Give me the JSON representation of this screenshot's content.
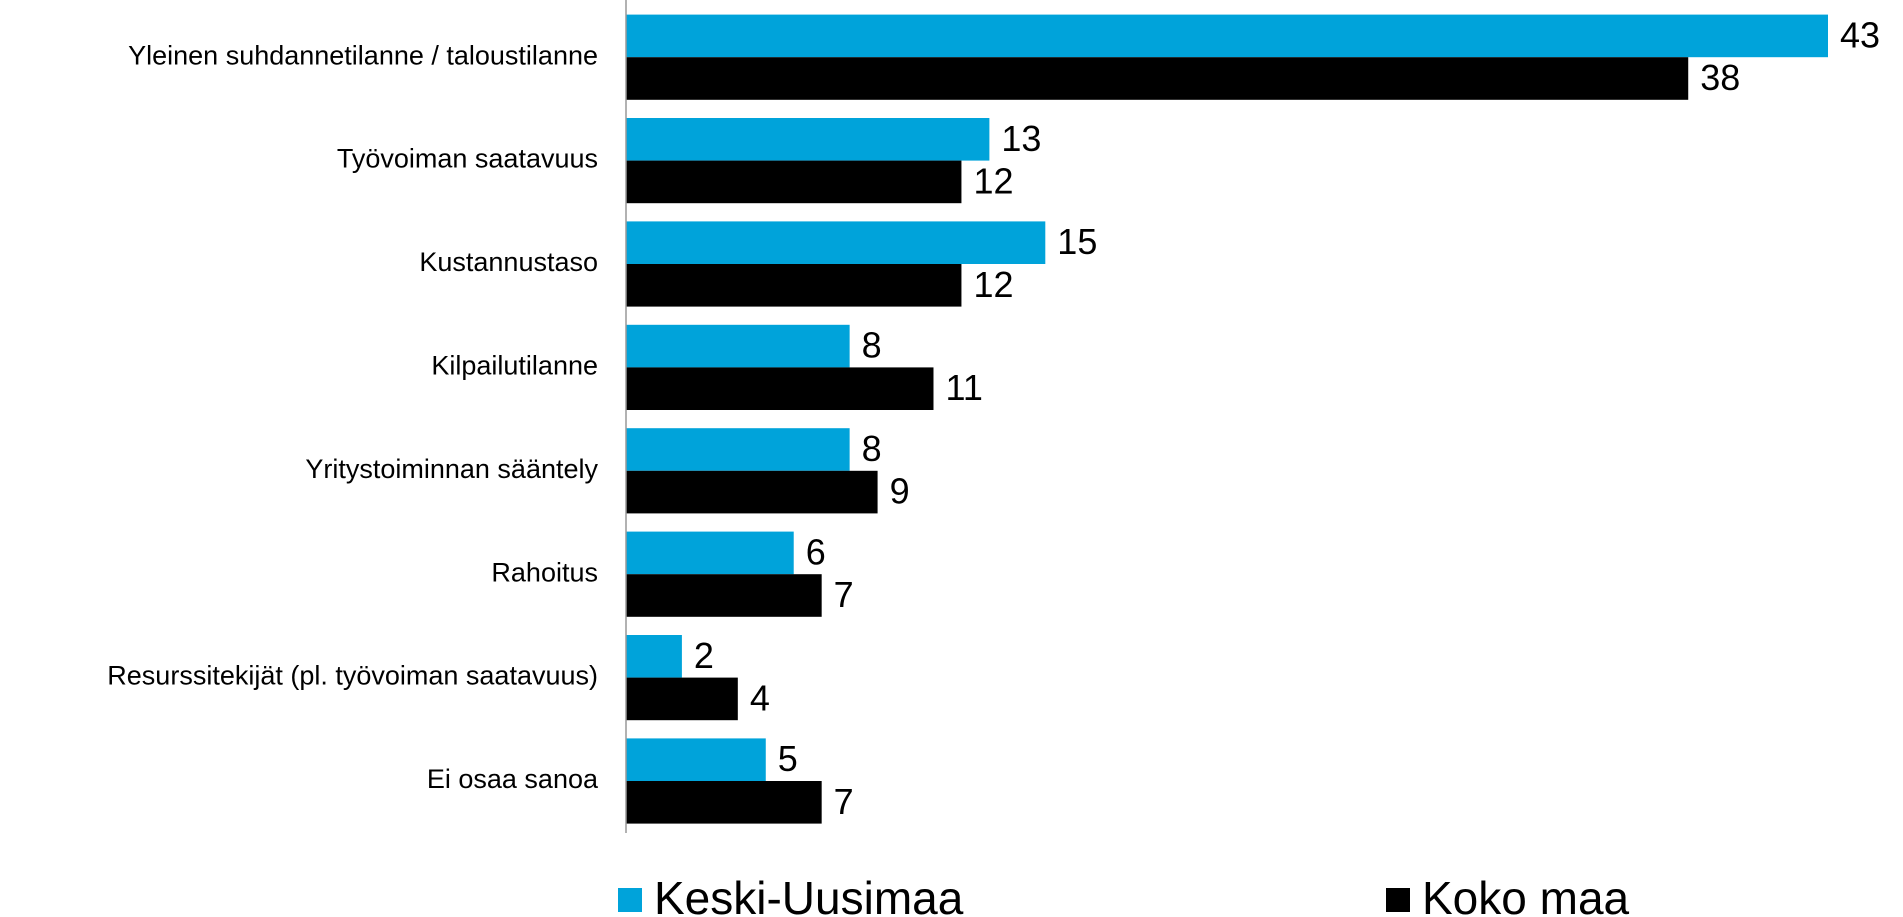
{
  "chart_data": {
    "type": "bar",
    "orientation": "horizontal",
    "categories": [
      "Yleinen suhdannetilanne / taloustilanne",
      "Työvoiman saatavuus",
      "Kustannustaso",
      "Kilpailutilanne",
      "Yritystoiminnan sääntely",
      "Rahoitus",
      "Resurssitekijät (pl. työvoiman saatavuus)",
      "Ei osaa sanoa"
    ],
    "series": [
      {
        "name": "Keski-Uusimaa",
        "color": "#00a3da",
        "values": [
          43,
          13,
          15,
          8,
          8,
          6,
          2,
          5
        ]
      },
      {
        "name": "Koko maa",
        "color": "#000000",
        "values": [
          38,
          12,
          12,
          11,
          9,
          7,
          4,
          7
        ]
      }
    ]
  }
}
